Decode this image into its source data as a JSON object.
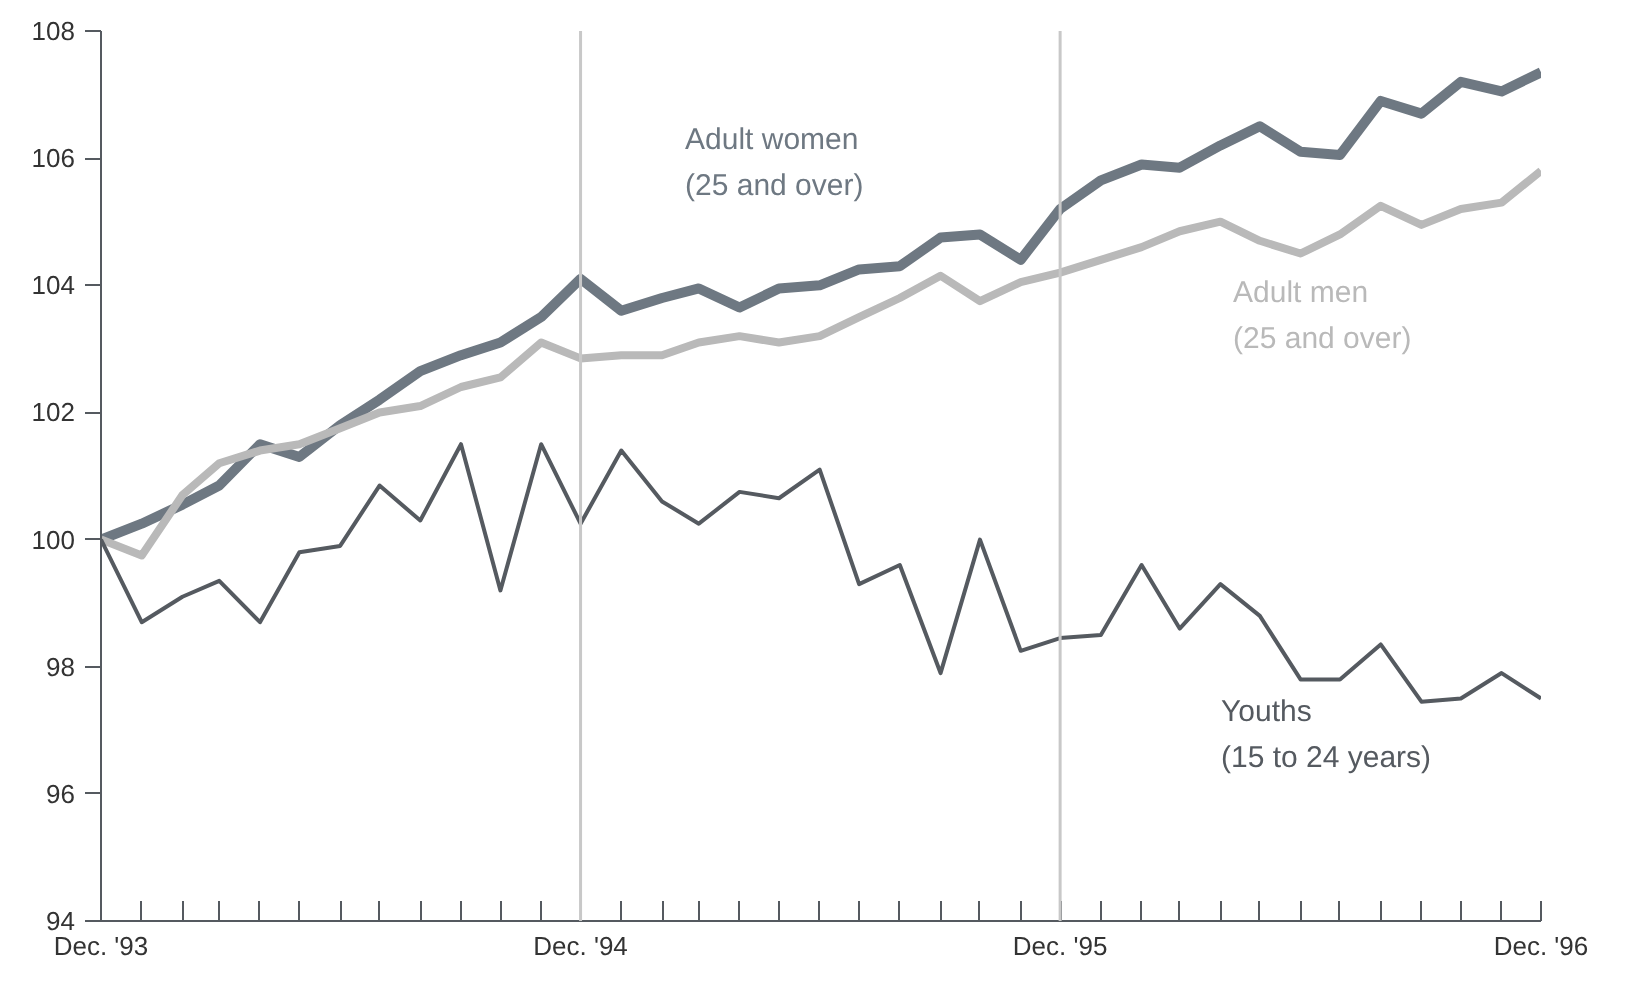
{
  "chart_data": {
    "type": "line",
    "x": [
      "1993-12",
      "1994-01",
      "1994-02",
      "1994-03",
      "1994-04",
      "1994-05",
      "1994-06",
      "1994-07",
      "1994-08",
      "1994-09",
      "1994-10",
      "1994-11",
      "1994-12",
      "1995-01",
      "1995-02",
      "1995-03",
      "1995-04",
      "1995-05",
      "1995-06",
      "1995-07",
      "1995-08",
      "1995-09",
      "1995-10",
      "1995-11",
      "1995-12",
      "1996-01",
      "1996-02",
      "1996-03",
      "1996-04",
      "1996-05",
      "1996-06",
      "1996-07",
      "1996-08",
      "1996-09",
      "1996-10",
      "1996-11",
      "1996-12"
    ],
    "series": [
      {
        "name": "Adult women\n(25 and over)",
        "color": "#6e7882",
        "values": [
          100.0,
          100.25,
          100.55,
          100.85,
          101.5,
          101.3,
          101.8,
          102.2,
          102.65,
          102.9,
          103.1,
          103.5,
          104.1,
          103.6,
          103.8,
          103.95,
          103.65,
          103.95,
          104.0,
          104.25,
          104.3,
          104.75,
          104.8,
          104.4,
          105.2,
          105.65,
          105.9,
          105.85,
          106.2,
          106.5,
          106.1,
          106.05,
          106.9,
          106.7,
          107.2,
          107.05,
          107.35
        ]
      },
      {
        "name": "Adult men\n(25 and over)",
        "color": "#b9b9b9",
        "values": [
          100.0,
          99.75,
          100.7,
          101.2,
          101.4,
          101.5,
          101.75,
          102.0,
          102.1,
          102.4,
          102.55,
          103.1,
          102.85,
          102.9,
          102.9,
          103.1,
          103.2,
          103.1,
          103.2,
          103.5,
          103.8,
          104.15,
          103.75,
          104.05,
          104.2,
          104.4,
          104.6,
          104.85,
          105.0,
          104.7,
          104.5,
          104.8,
          105.25,
          104.95,
          105.2,
          105.3,
          105.8
        ]
      },
      {
        "name": "Youths\n(15 to 24 years)",
        "color": "#555a60",
        "values": [
          100.0,
          98.7,
          99.1,
          99.35,
          98.7,
          99.8,
          99.9,
          100.85,
          100.3,
          101.5,
          99.2,
          101.5,
          100.25,
          101.4,
          100.6,
          100.25,
          100.75,
          100.65,
          101.1,
          99.3,
          99.6,
          97.9,
          100.0,
          98.25,
          98.45,
          98.5,
          99.6,
          98.6,
          99.3,
          98.8,
          97.8,
          97.8,
          98.35,
          97.45,
          97.5,
          97.9,
          97.5
        ]
      }
    ],
    "xlim": [
      "1993-12",
      "1996-12"
    ],
    "xticks": [
      {
        "value": "1993-12",
        "label": "Dec. '93"
      },
      {
        "value": "1994-01",
        "label": null
      },
      {
        "value": "1994-02",
        "label": null
      },
      {
        "value": "1994-03",
        "label": null
      },
      {
        "value": "1994-04",
        "label": null
      },
      {
        "value": "1994-05",
        "label": null
      },
      {
        "value": "1994-06",
        "label": null
      },
      {
        "value": "1994-07",
        "label": null
      },
      {
        "value": "1994-08",
        "label": null
      },
      {
        "value": "1994-09",
        "label": null
      },
      {
        "value": "1994-10",
        "label": null
      },
      {
        "value": "1994-11",
        "label": null
      },
      {
        "value": "1994-12",
        "label": "Dec. '94"
      },
      {
        "value": "1995-01",
        "label": null
      },
      {
        "value": "1995-02",
        "label": null
      },
      {
        "value": "1995-03",
        "label": null
      },
      {
        "value": "1995-04",
        "label": null
      },
      {
        "value": "1995-05",
        "label": null
      },
      {
        "value": "1995-06",
        "label": null
      },
      {
        "value": "1995-07",
        "label": null
      },
      {
        "value": "1995-08",
        "label": null
      },
      {
        "value": "1995-09",
        "label": null
      },
      {
        "value": "1995-10",
        "label": null
      },
      {
        "value": "1995-11",
        "label": null
      },
      {
        "value": "1995-12",
        "label": "Dec. '95"
      },
      {
        "value": "1996-01",
        "label": null
      },
      {
        "value": "1996-02",
        "label": null
      },
      {
        "value": "1996-03",
        "label": null
      },
      {
        "value": "1996-04",
        "label": null
      },
      {
        "value": "1996-05",
        "label": null
      },
      {
        "value": "1996-06",
        "label": null
      },
      {
        "value": "1996-07",
        "label": null
      },
      {
        "value": "1996-08",
        "label": null
      },
      {
        "value": "1996-09",
        "label": null
      },
      {
        "value": "1996-10",
        "label": null
      },
      {
        "value": "1996-11",
        "label": null
      },
      {
        "value": "1996-12",
        "label": "Dec. '96"
      }
    ],
    "ylim": [
      94,
      108
    ],
    "yticks": [
      94,
      96,
      98,
      100,
      102,
      104,
      106,
      108
    ],
    "ref_lines": [
      {
        "axis": "x",
        "value": "1994-12",
        "color": "#c8c8c8"
      },
      {
        "axis": "x",
        "value": "1995-12",
        "color": "#c8c8c8"
      }
    ],
    "grid": false,
    "marker": "none",
    "line_style": "solid"
  }
}
